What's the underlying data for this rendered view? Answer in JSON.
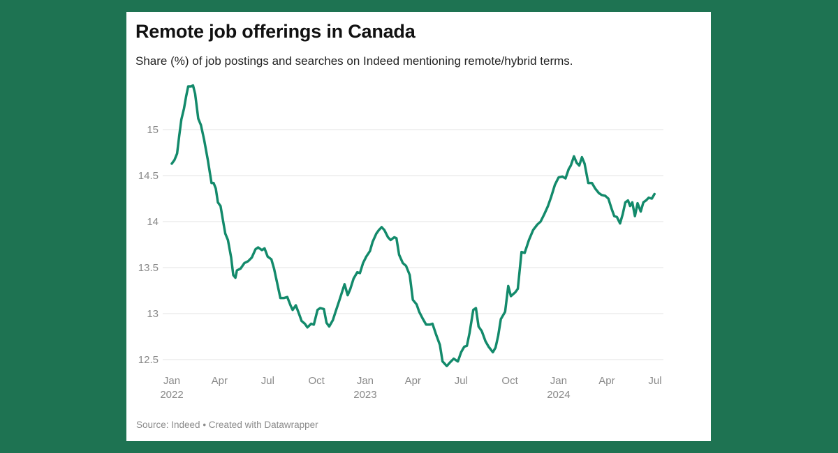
{
  "background_color": "#1e7352",
  "title": "Remote job offerings in Canada",
  "subtitle": "Share (%) of job postings and searches on Indeed mentioning remote/hybrid terms.",
  "source": "Source: Indeed • Created with Datawrapper",
  "chart_data": {
    "type": "line",
    "title": "Remote job offerings in Canada",
    "line_color": "#138a6b",
    "grid": true,
    "ylim": [
      12.5,
      15.5
    ],
    "xlim": [
      "2022-01-01",
      "2024-07-01"
    ],
    "y_ticks": [
      "12.5",
      "13",
      "13.5",
      "14",
      "14.5",
      "15"
    ],
    "x_ticks": [
      {
        "date": "2022-01-01",
        "label": "Jan",
        "year": "2022"
      },
      {
        "date": "2022-04-01",
        "label": "Apr",
        "year": ""
      },
      {
        "date": "2022-07-01",
        "label": "Jul",
        "year": ""
      },
      {
        "date": "2022-10-01",
        "label": "Oct",
        "year": ""
      },
      {
        "date": "2023-01-01",
        "label": "Jan",
        "year": "2023"
      },
      {
        "date": "2023-04-01",
        "label": "Apr",
        "year": ""
      },
      {
        "date": "2023-07-01",
        "label": "Jul",
        "year": ""
      },
      {
        "date": "2023-10-01",
        "label": "Oct",
        "year": ""
      },
      {
        "date": "2024-01-01",
        "label": "Jan",
        "year": "2024"
      },
      {
        "date": "2024-04-01",
        "label": "Apr",
        "year": ""
      },
      {
        "date": "2024-07-01",
        "label": "Jul",
        "year": ""
      }
    ],
    "series": [
      {
        "points": [
          [
            "2022-01-01",
            14.63
          ],
          [
            "2022-01-06",
            14.67
          ],
          [
            "2022-01-11",
            14.74
          ],
          [
            "2022-01-15",
            14.93
          ],
          [
            "2022-01-19",
            15.11
          ],
          [
            "2022-01-24",
            15.23
          ],
          [
            "2022-01-28",
            15.36
          ],
          [
            "2022-02-01",
            15.47
          ],
          [
            "2022-02-06",
            15.47
          ],
          [
            "2022-02-10",
            15.48
          ],
          [
            "2022-02-14",
            15.39
          ],
          [
            "2022-02-20",
            15.12
          ],
          [
            "2022-02-25",
            15.05
          ],
          [
            "2022-03-03",
            14.89
          ],
          [
            "2022-03-10",
            14.67
          ],
          [
            "2022-03-17",
            14.42
          ],
          [
            "2022-03-21",
            14.42
          ],
          [
            "2022-03-25",
            14.36
          ],
          [
            "2022-03-29",
            14.21
          ],
          [
            "2022-04-03",
            14.17
          ],
          [
            "2022-04-08",
            14.0
          ],
          [
            "2022-04-12",
            13.87
          ],
          [
            "2022-04-17",
            13.8
          ],
          [
            "2022-04-23",
            13.61
          ],
          [
            "2022-04-27",
            13.42
          ],
          [
            "2022-05-01",
            13.39
          ],
          [
            "2022-05-04",
            13.47
          ],
          [
            "2022-05-11",
            13.49
          ],
          [
            "2022-05-18",
            13.55
          ],
          [
            "2022-05-25",
            13.57
          ],
          [
            "2022-06-01",
            13.61
          ],
          [
            "2022-06-08",
            13.7
          ],
          [
            "2022-06-13",
            13.72
          ],
          [
            "2022-06-20",
            13.69
          ],
          [
            "2022-06-25",
            13.71
          ],
          [
            "2022-07-01",
            13.62
          ],
          [
            "2022-07-08",
            13.59
          ],
          [
            "2022-07-13",
            13.49
          ],
          [
            "2022-07-20",
            13.3
          ],
          [
            "2022-07-25",
            13.17
          ],
          [
            "2022-08-01",
            13.17
          ],
          [
            "2022-08-07",
            13.18
          ],
          [
            "2022-08-13",
            13.09
          ],
          [
            "2022-08-17",
            13.04
          ],
          [
            "2022-08-23",
            13.09
          ],
          [
            "2022-08-29",
            13.0
          ],
          [
            "2022-09-03",
            12.92
          ],
          [
            "2022-09-09",
            12.89
          ],
          [
            "2022-09-14",
            12.85
          ],
          [
            "2022-09-21",
            12.89
          ],
          [
            "2022-09-26",
            12.88
          ],
          [
            "2022-10-03",
            13.04
          ],
          [
            "2022-10-08",
            13.06
          ],
          [
            "2022-10-15",
            13.05
          ],
          [
            "2022-10-20",
            12.9
          ],
          [
            "2022-10-25",
            12.86
          ],
          [
            "2022-11-01",
            12.93
          ],
          [
            "2022-11-06",
            13.02
          ],
          [
            "2022-11-13",
            13.14
          ],
          [
            "2022-11-18",
            13.23
          ],
          [
            "2022-11-23",
            13.32
          ],
          [
            "2022-11-29",
            13.2
          ],
          [
            "2022-12-04",
            13.27
          ],
          [
            "2022-12-10",
            13.38
          ],
          [
            "2022-12-17",
            13.45
          ],
          [
            "2022-12-22",
            13.44
          ],
          [
            "2022-12-28",
            13.55
          ],
          [
            "2023-01-03",
            13.62
          ],
          [
            "2023-01-10",
            13.68
          ],
          [
            "2023-01-15",
            13.78
          ],
          [
            "2023-01-22",
            13.87
          ],
          [
            "2023-01-27",
            13.91
          ],
          [
            "2023-02-01",
            13.94
          ],
          [
            "2023-02-06",
            13.91
          ],
          [
            "2023-02-13",
            13.83
          ],
          [
            "2023-02-18",
            13.8
          ],
          [
            "2023-02-25",
            13.83
          ],
          [
            "2023-03-01",
            13.82
          ],
          [
            "2023-03-06",
            13.64
          ],
          [
            "2023-03-13",
            13.55
          ],
          [
            "2023-03-19",
            13.52
          ],
          [
            "2023-03-26",
            13.42
          ],
          [
            "2023-04-01",
            13.15
          ],
          [
            "2023-04-08",
            13.1
          ],
          [
            "2023-04-13",
            13.02
          ],
          [
            "2023-04-20",
            12.94
          ],
          [
            "2023-04-26",
            12.88
          ],
          [
            "2023-05-03",
            12.88
          ],
          [
            "2023-05-08",
            12.89
          ],
          [
            "2023-05-15",
            12.77
          ],
          [
            "2023-05-22",
            12.66
          ],
          [
            "2023-05-27",
            12.48
          ],
          [
            "2023-06-04",
            12.43
          ],
          [
            "2023-06-10",
            12.47
          ],
          [
            "2023-06-17",
            12.51
          ],
          [
            "2023-06-25",
            12.48
          ],
          [
            "2023-07-01",
            12.58
          ],
          [
            "2023-07-07",
            12.64
          ],
          [
            "2023-07-12",
            12.65
          ],
          [
            "2023-07-17",
            12.79
          ],
          [
            "2023-07-24",
            13.04
          ],
          [
            "2023-07-29",
            13.06
          ],
          [
            "2023-08-03",
            12.86
          ],
          [
            "2023-08-09",
            12.81
          ],
          [
            "2023-08-16",
            12.7
          ],
          [
            "2023-08-22",
            12.64
          ],
          [
            "2023-08-30",
            12.58
          ],
          [
            "2023-09-04",
            12.63
          ],
          [
            "2023-09-09",
            12.76
          ],
          [
            "2023-09-14",
            12.94
          ],
          [
            "2023-09-22",
            13.02
          ],
          [
            "2023-09-28",
            13.3
          ],
          [
            "2023-10-03",
            13.19
          ],
          [
            "2023-10-11",
            13.23
          ],
          [
            "2023-10-16",
            13.27
          ],
          [
            "2023-10-23",
            13.67
          ],
          [
            "2023-10-29",
            13.66
          ],
          [
            "2023-11-06",
            13.8
          ],
          [
            "2023-11-14",
            13.91
          ],
          [
            "2023-11-22",
            13.97
          ],
          [
            "2023-11-28",
            14.0
          ],
          [
            "2023-12-05",
            14.08
          ],
          [
            "2023-12-12",
            14.17
          ],
          [
            "2023-12-18",
            14.27
          ],
          [
            "2023-12-25",
            14.4
          ],
          [
            "2024-01-01",
            14.48
          ],
          [
            "2024-01-08",
            14.49
          ],
          [
            "2024-01-14",
            14.47
          ],
          [
            "2024-01-20",
            14.57
          ],
          [
            "2024-01-24",
            14.61
          ],
          [
            "2024-01-30",
            14.71
          ],
          [
            "2024-02-04",
            14.64
          ],
          [
            "2024-02-09",
            14.61
          ],
          [
            "2024-02-14",
            14.7
          ],
          [
            "2024-02-19",
            14.63
          ],
          [
            "2024-02-26",
            14.42
          ],
          [
            "2024-03-04",
            14.42
          ],
          [
            "2024-03-10",
            14.36
          ],
          [
            "2024-03-17",
            14.31
          ],
          [
            "2024-03-22",
            14.29
          ],
          [
            "2024-03-29",
            14.28
          ],
          [
            "2024-04-04",
            14.25
          ],
          [
            "2024-04-10",
            14.14
          ],
          [
            "2024-04-15",
            14.06
          ],
          [
            "2024-04-20",
            14.05
          ],
          [
            "2024-04-26",
            13.98
          ],
          [
            "2024-05-01",
            14.08
          ],
          [
            "2024-05-06",
            14.21
          ],
          [
            "2024-05-11",
            14.23
          ],
          [
            "2024-05-15",
            14.17
          ],
          [
            "2024-05-19",
            14.21
          ],
          [
            "2024-05-24",
            14.06
          ],
          [
            "2024-05-29",
            14.2
          ],
          [
            "2024-06-04",
            14.11
          ],
          [
            "2024-06-09",
            14.21
          ],
          [
            "2024-06-14",
            14.23
          ],
          [
            "2024-06-19",
            14.26
          ],
          [
            "2024-06-25",
            14.25
          ],
          [
            "2024-06-30",
            14.3
          ]
        ]
      }
    ]
  }
}
